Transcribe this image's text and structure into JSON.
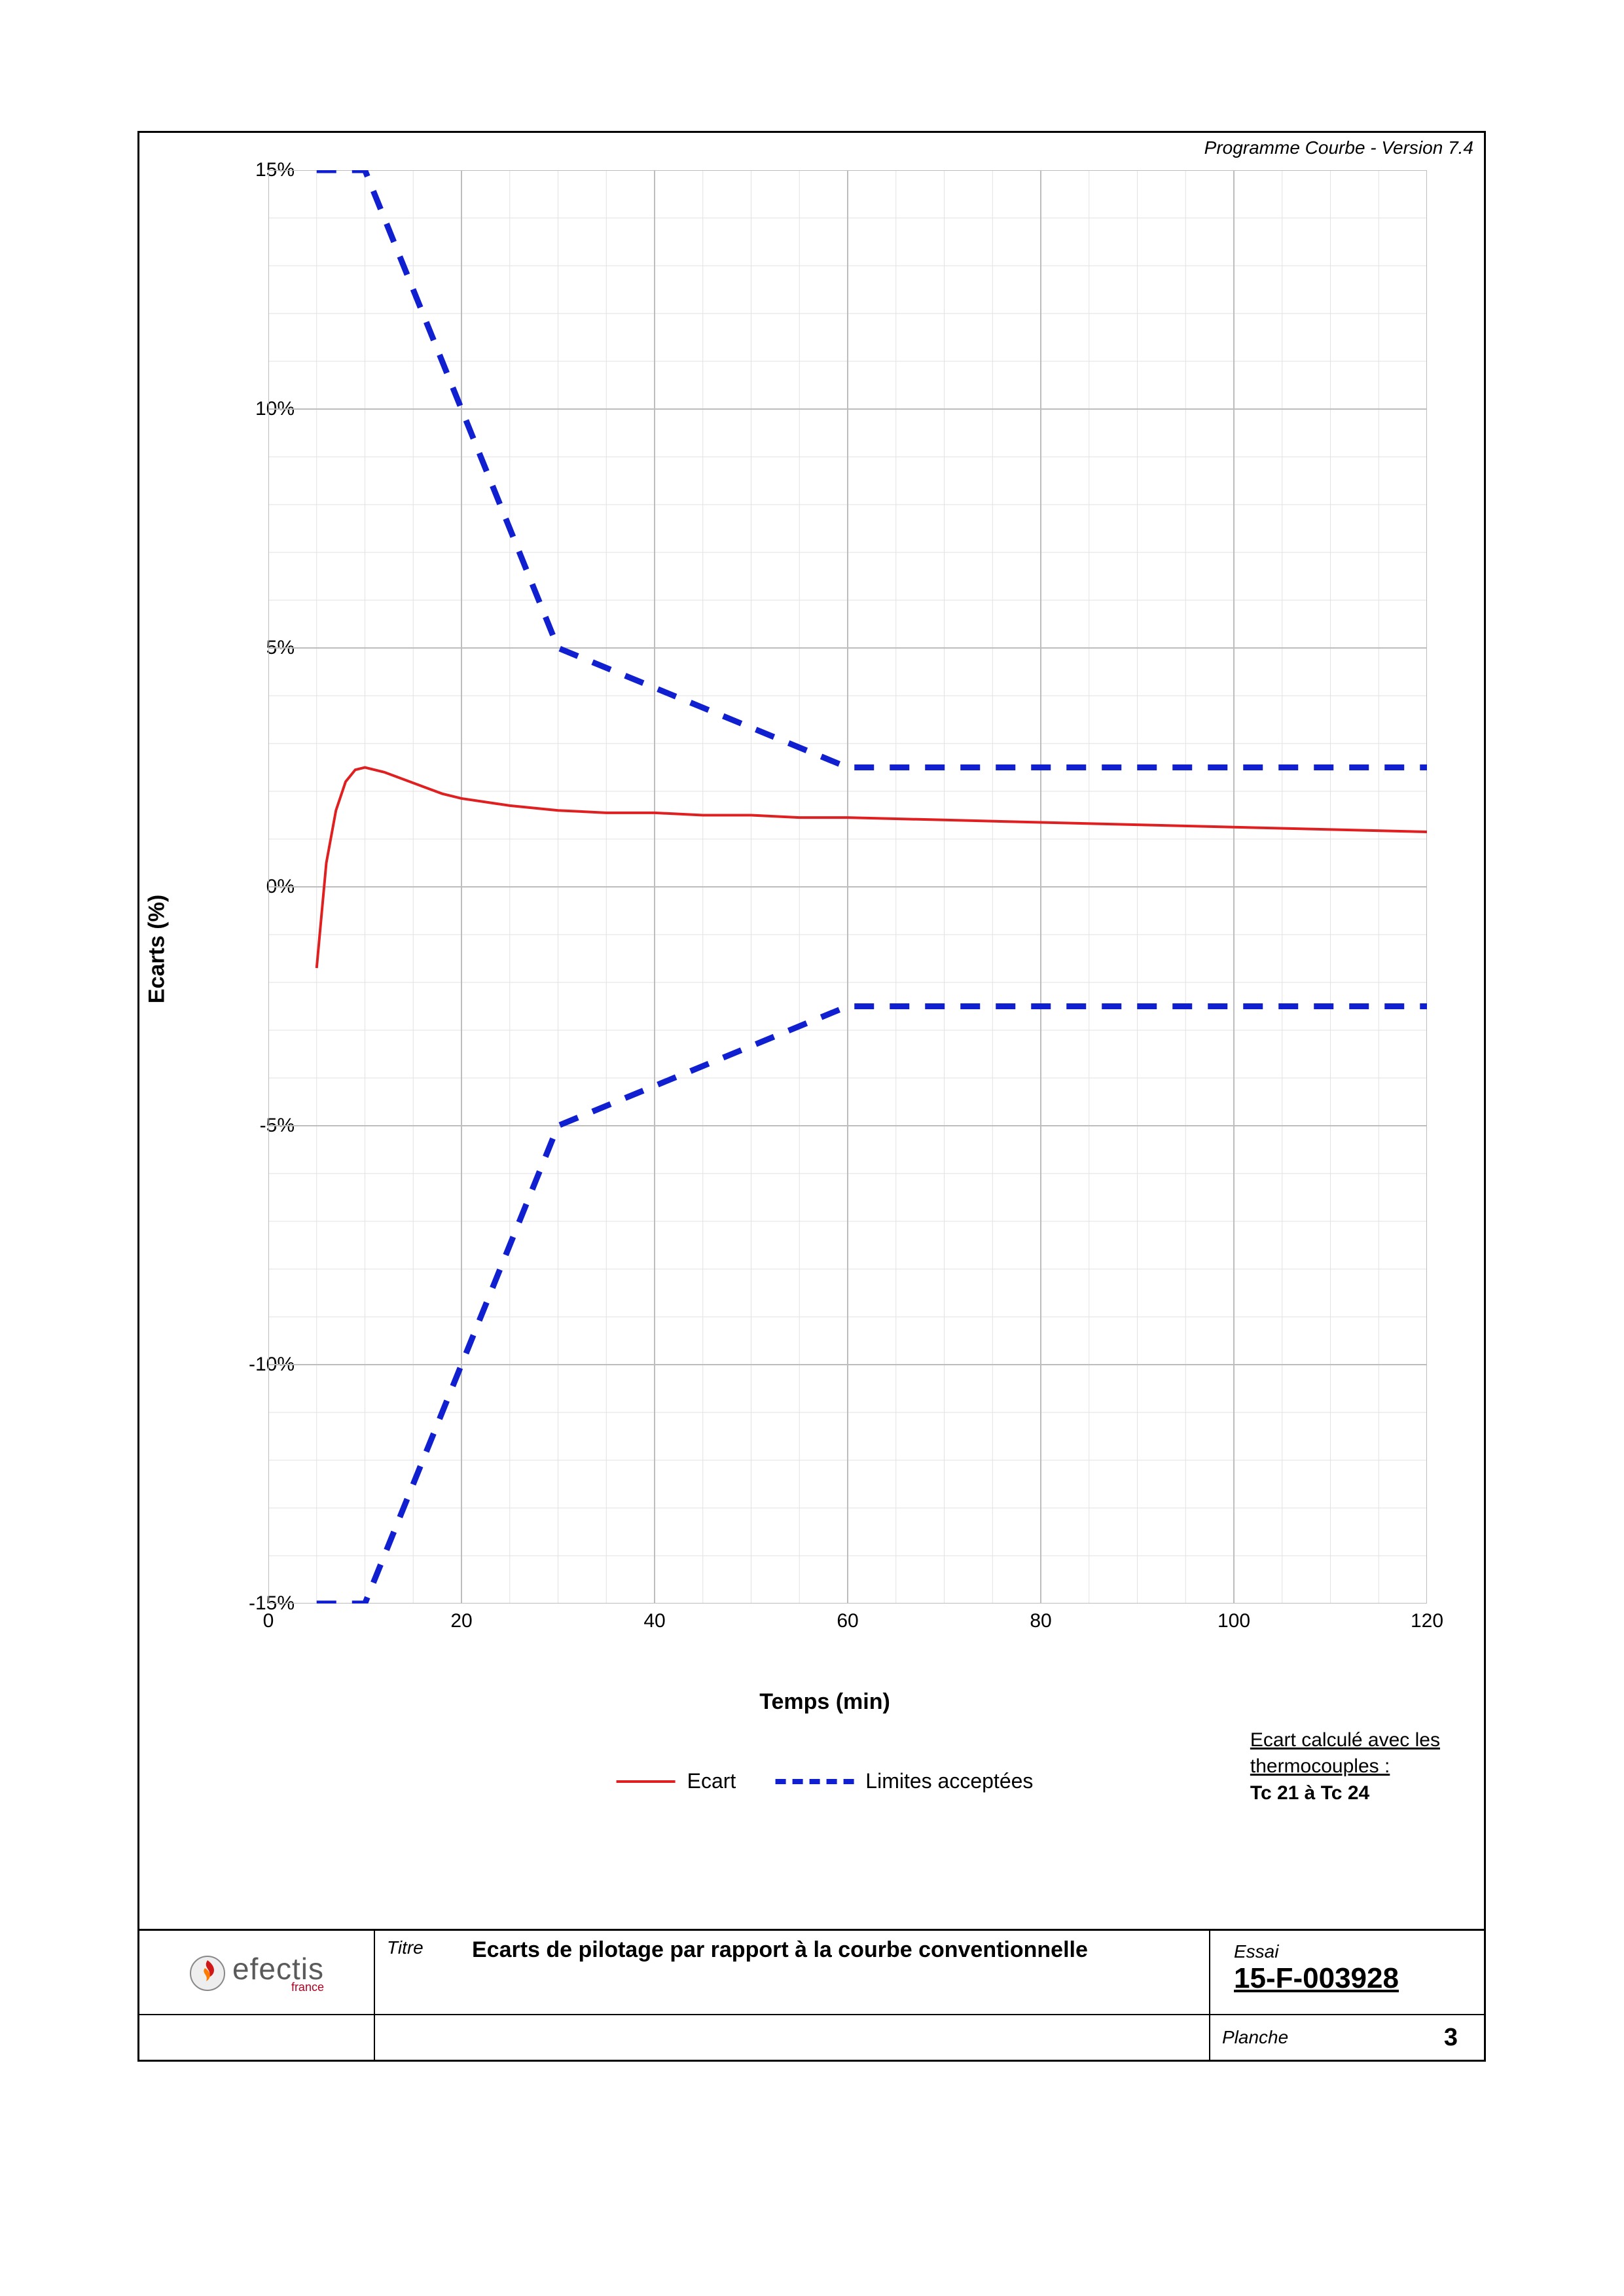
{
  "program_version": "Programme Courbe  - Version 7.4",
  "chart": {
    "type": "line",
    "x_label": "Temps (min)",
    "y_label": "Ecarts (%)",
    "xlim": [
      0,
      120
    ],
    "ylim": [
      -15,
      15
    ],
    "xtick_step_major": 20,
    "xtick_step_minor": 5,
    "ytick_step_major": 5,
    "ytick_step_minor": 1,
    "xticks": [
      0,
      20,
      40,
      60,
      80,
      100,
      120
    ],
    "yticks": [
      -15,
      -10,
      -5,
      0,
      5,
      10,
      15
    ],
    "ytick_labels": [
      "-15%",
      "-10%",
      "-5%",
      "0%",
      "5%",
      "10%",
      "15%"
    ],
    "background_color": "#ffffff",
    "grid_major_color": "#bdbdbd",
    "grid_minor_color": "#e2e2e2",
    "grid_major_width": 2,
    "grid_minor_width": 1,
    "series": {
      "ecart": {
        "label": "Ecart",
        "color": "#e02020",
        "width": 4,
        "dash": "none",
        "points": [
          [
            5,
            -1.7
          ],
          [
            6,
            0.5
          ],
          [
            7,
            1.6
          ],
          [
            8,
            2.2
          ],
          [
            9,
            2.45
          ],
          [
            10,
            2.5
          ],
          [
            12,
            2.4
          ],
          [
            14,
            2.25
          ],
          [
            16,
            2.1
          ],
          [
            18,
            1.95
          ],
          [
            20,
            1.85
          ],
          [
            25,
            1.7
          ],
          [
            30,
            1.6
          ],
          [
            35,
            1.55
          ],
          [
            40,
            1.55
          ],
          [
            45,
            1.5
          ],
          [
            50,
            1.5
          ],
          [
            55,
            1.45
          ],
          [
            60,
            1.45
          ],
          [
            70,
            1.4
          ],
          [
            80,
            1.35
          ],
          [
            90,
            1.3
          ],
          [
            100,
            1.25
          ],
          [
            110,
            1.2
          ],
          [
            120,
            1.15
          ]
        ]
      },
      "limit_upper": {
        "label": "Limites acceptées",
        "color": "#1020d0",
        "width": 9,
        "dash": "30,24",
        "points": [
          [
            5,
            15
          ],
          [
            10,
            15
          ],
          [
            30,
            5
          ],
          [
            60,
            2.5
          ],
          [
            120,
            2.5
          ]
        ]
      },
      "limit_lower": {
        "color": "#1020d0",
        "width": 9,
        "dash": "30,24",
        "points": [
          [
            5,
            -15
          ],
          [
            10,
            -15
          ],
          [
            30,
            -5
          ],
          [
            60,
            -2.5
          ],
          [
            120,
            -2.5
          ]
        ]
      }
    },
    "legend": {
      "items": [
        {
          "key": "ecart",
          "label": "Ecart"
        },
        {
          "key": "limit_upper",
          "label": "Limites acceptées"
        }
      ]
    },
    "note": {
      "line1": "Ecart calculé avec les",
      "line2": "thermocouples :",
      "line3": "Tc 21 à Tc 24"
    }
  },
  "title_block": {
    "logo_brand": "efectis",
    "logo_sub": "france",
    "titre_label": "Titre",
    "titre_text": "Ecarts de pilotage par rapport à la courbe conventionnelle",
    "essai_label": "Essai",
    "essai_number": "15-F-003928",
    "planche_label": "Planche",
    "planche_number": "3"
  },
  "colors": {
    "frame": "#000000",
    "text": "#000000"
  }
}
